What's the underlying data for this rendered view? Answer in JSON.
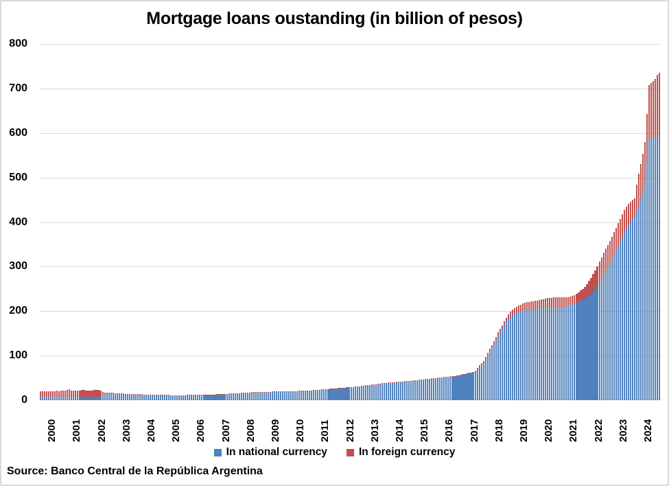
{
  "page": {
    "title": "Mortgage loans oustanding (in billion of pesos)",
    "source_note": "Source: Banco Central de la República Argentina"
  },
  "legend": {
    "items": [
      {
        "label": "In national currency",
        "color": "#4F81BD"
      },
      {
        "label": "In foreign currency",
        "color": "#C0504D"
      }
    ]
  },
  "chart_data": {
    "type": "bar",
    "stacked": true,
    "title": "Mortgage loans oustanding (in billion of pesos)",
    "xlabel": "",
    "ylabel": "",
    "frequency": "monthly",
    "x_years": [
      2000,
      2001,
      2002,
      2003,
      2004,
      2005,
      2006,
      2007,
      2008,
      2009,
      2010,
      2011,
      2012,
      2013,
      2014,
      2015,
      2016,
      2017,
      2018,
      2019,
      2020,
      2021,
      2022,
      2023,
      2024
    ],
    "ylim": [
      0,
      800
    ],
    "y_ticks": [
      0,
      100,
      200,
      300,
      400,
      500,
      600,
      700,
      800
    ],
    "grid": "horizontal",
    "legend_position": "bottom",
    "colors": {
      "national": "#4F81BD",
      "foreign": "#C0504D",
      "gridline": "#D9D9D9",
      "text": "#000000"
    },
    "series": [
      {
        "name": "In national currency",
        "color": "#4F81BD",
        "values": [
          7,
          7,
          7,
          7,
          7,
          7,
          7,
          7,
          7,
          7,
          7,
          7,
          7,
          7,
          7,
          7,
          7,
          7,
          7,
          7,
          7,
          7,
          6.5,
          6.5,
          6.5,
          7,
          7.5,
          8,
          8,
          8,
          12,
          13,
          13.5,
          14,
          14,
          14,
          13.5,
          13.5,
          13,
          13,
          12.5,
          12.5,
          12.5,
          12,
          12,
          12,
          12,
          12,
          11.5,
          11.5,
          11,
          11,
          11,
          10.8,
          10.8,
          10.5,
          10.5,
          10.5,
          10.5,
          10.5,
          10.3,
          10.2,
          10.2,
          10,
          10,
          10,
          10,
          10,
          10.2,
          10.2,
          10.3,
          10.5,
          10.5,
          10.6,
          10.7,
          10.8,
          10.9,
          11,
          11.1,
          11.2,
          11.3,
          11.5,
          11.6,
          11.8,
          12,
          12.2,
          12.4,
          12.6,
          12.9,
          13.2,
          13.5,
          13.8,
          14,
          14.2,
          14.4,
          14.6,
          15,
          15.3,
          15.6,
          16,
          16.3,
          16.6,
          16.9,
          17.1,
          17.3,
          17.5,
          17.6,
          17.8,
          18,
          18.1,
          18.2,
          18.3,
          18.4,
          18.5,
          18.5,
          18.6,
          18.6,
          18.7,
          18.8,
          18.9,
          19,
          19.1,
          19.3,
          19.5,
          19.7,
          19.9,
          20.1,
          20.3,
          20.5,
          20.7,
          20.9,
          21.2,
          21.5,
          21.8,
          22.2,
          22.6,
          23,
          23.4,
          23.8,
          24.2,
          24.6,
          25,
          25.4,
          25.8,
          26.2,
          26.6,
          27,
          27.4,
          27.8,
          28.2,
          28.6,
          29,
          29.4,
          29.8,
          30.2,
          30.8,
          31.4,
          32,
          32.6,
          33.2,
          33.8,
          34.4,
          35,
          35.6,
          36.2,
          36.8,
          37.2,
          37.8,
          38.2,
          38.6,
          39,
          39.4,
          39.8,
          40.2,
          40.6,
          41,
          41.4,
          41.8,
          42.2,
          42.6,
          43,
          43.5,
          44,
          44.5,
          45,
          45.5,
          46,
          46.5,
          47,
          47.5,
          48,
          48.5,
          49,
          49.5,
          50,
          50.5,
          51,
          51.5,
          52,
          52.5,
          53,
          53.5,
          54.5,
          55.5,
          56.5,
          57.5,
          58.5,
          59.5,
          60,
          61.5,
          64,
          69,
          75,
          80,
          84,
          92,
          102,
          111,
          118,
          127,
          136,
          146,
          153,
          161,
          169,
          176,
          182,
          188,
          191,
          193,
          195,
          197,
          200,
          201,
          203,
          203,
          204,
          204,
          204,
          205,
          205,
          206,
          206,
          207,
          207,
          208,
          208,
          208,
          209,
          208,
          208,
          208,
          208,
          209,
          211,
          212,
          214,
          215,
          217,
          219,
          221,
          223,
          225,
          228,
          230,
          234,
          238,
          243,
          249,
          256,
          265,
          274,
          284,
          292,
          301,
          309,
          319,
          328,
          337,
          347,
          356,
          366,
          377,
          386,
          394,
          401,
          407,
          412,
          422,
          435,
          448,
          462,
          480,
          530,
          585,
          588,
          590,
          590,
          591,
          592
        ]
      },
      {
        "name": "In foreign currency",
        "color": "#C0504D",
        "values": [
          13,
          13,
          13.5,
          13,
          13.5,
          13,
          13.5,
          13.5,
          14,
          13.5,
          14,
          14,
          14,
          16,
          17,
          15,
          14.5,
          14,
          14,
          15,
          15.5,
          15.5,
          15,
          14.5,
          14.5,
          15,
          16,
          15.5,
          15,
          14,
          6,
          4.5,
          4,
          3.5,
          3.5,
          3,
          2.5,
          2.5,
          2.5,
          2.5,
          2.5,
          2,
          2,
          2,
          2,
          2,
          2,
          2,
          2,
          2,
          1.8,
          1.8,
          1.8,
          1.6,
          1.6,
          1.6,
          1.5,
          1.5,
          1.5,
          1.5,
          1.5,
          1.4,
          1.4,
          1.4,
          1.3,
          1.3,
          1.3,
          1.2,
          1.2,
          1.2,
          1.2,
          1.2,
          1.2,
          1.2,
          1.1,
          1.1,
          1.1,
          1.1,
          1,
          1,
          1,
          1,
          1,
          1,
          1,
          1,
          1,
          1,
          1,
          1,
          1,
          1,
          1,
          1,
          1,
          1,
          1,
          1,
          1,
          1,
          1,
          1,
          1,
          1,
          1,
          1,
          1,
          1,
          1,
          1,
          1,
          1,
          1,
          1,
          1,
          1,
          1,
          1,
          1,
          1,
          1,
          1,
          1,
          1,
          1,
          1,
          1,
          1,
          1,
          1,
          1,
          1,
          1,
          1,
          1,
          1,
          1,
          1,
          1,
          1,
          1,
          1,
          1,
          1,
          1,
          1,
          1,
          1,
          1,
          1,
          1,
          1,
          1,
          1,
          1,
          1,
          1.2,
          1.2,
          1.2,
          1.2,
          1.2,
          1.2,
          1.2,
          1.2,
          1.2,
          1.2,
          1.2,
          1.2,
          1.3,
          1.3,
          1.3,
          1.3,
          1.3,
          1.3,
          1.3,
          1.3,
          1.3,
          1.3,
          1.3,
          1.3,
          1.4,
          1.4,
          1.4,
          1.4,
          1.4,
          1.4,
          1.4,
          1.4,
          1.4,
          1.4,
          1.4,
          1.4,
          1.5,
          1.5,
          1.5,
          1.5,
          1.5,
          1.5,
          1.5,
          1.5,
          1.5,
          1.5,
          1.5,
          1.5,
          1.5,
          1.5,
          1.5,
          1.5,
          2,
          2.5,
          3,
          3,
          4,
          4,
          4,
          5,
          4,
          4,
          5,
          5,
          6,
          6,
          7,
          7,
          8,
          9,
          10,
          11,
          12,
          13,
          14,
          15,
          15,
          16,
          16,
          17,
          17,
          18,
          18,
          18,
          19,
          19,
          20,
          20,
          21,
          21,
          22,
          22,
          22,
          23,
          23,
          23,
          23,
          22,
          21,
          20,
          19,
          19,
          19,
          20,
          21,
          23,
          25,
          27,
          31,
          34,
          37,
          40,
          43,
          45,
          46,
          47,
          47,
          48,
          48,
          49,
          48,
          49,
          50,
          50,
          51,
          51,
          50,
          49,
          47,
          45,
          43,
          41,
          62,
          74,
          82,
          91,
          100,
          113,
          122,
          124,
          127,
          132,
          139,
          144
        ]
      }
    ]
  }
}
